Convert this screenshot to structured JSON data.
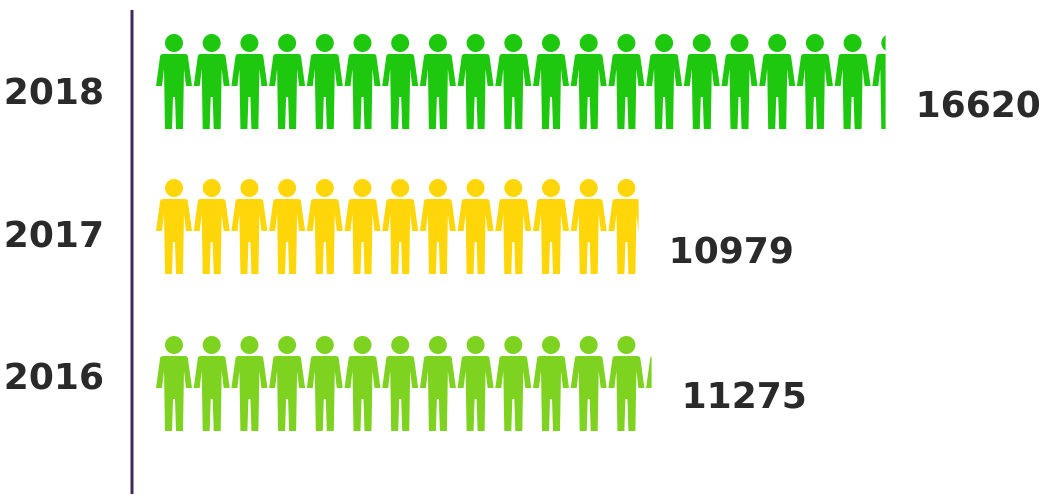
{
  "chart_data": {
    "type": "bar",
    "orientation": "horizontal",
    "style": "pictogram",
    "icon": "person-icon",
    "categories": [
      "2018",
      "2017",
      "2016"
    ],
    "values": [
      16620,
      10979,
      11275
    ],
    "colors": [
      "#1ec80f",
      "#ffd60a",
      "#7ed321"
    ],
    "axis_color": "#3d2b5a",
    "title": "",
    "xlabel": "",
    "ylabel": ""
  }
}
